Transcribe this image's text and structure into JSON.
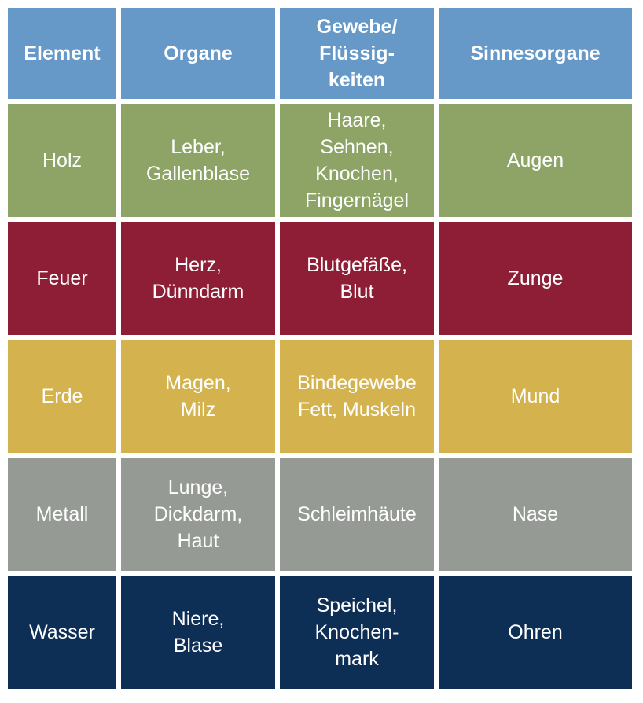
{
  "colors": {
    "header": "#6699c8",
    "holz": "#8da466",
    "feuer": "#8e1e36",
    "erde": "#d4b34f",
    "metall": "#969a94",
    "wasser": "#0d2e55"
  },
  "headers": [
    "Element",
    "Organe",
    "Gewebe/\nFlüssig-\nkeiten",
    "Sinnesorgane"
  ],
  "rows": [
    {
      "key": "holz",
      "cells": [
        "Holz",
        "Leber,\nGallenblase",
        "Haare,\nSehnen,\nKnochen,\nFingernägel",
        "Augen"
      ]
    },
    {
      "key": "feuer",
      "cells": [
        "Feuer",
        "Herz,\nDünndarm",
        "Blutgefäße,\nBlut",
        "Zunge"
      ]
    },
    {
      "key": "erde",
      "cells": [
        "Erde",
        "Magen,\nMilz",
        "Bindegewebe\nFett, Muskeln",
        "Mund"
      ]
    },
    {
      "key": "metall",
      "cells": [
        "Metall",
        "Lunge,\nDickdarm,\nHaut",
        "Schleimhäute",
        "Nase"
      ]
    },
    {
      "key": "wasser",
      "cells": [
        "Wasser",
        "Niere,\nBlase",
        "Speichel,\nKnochen-\nmark",
        "Ohren"
      ]
    }
  ]
}
